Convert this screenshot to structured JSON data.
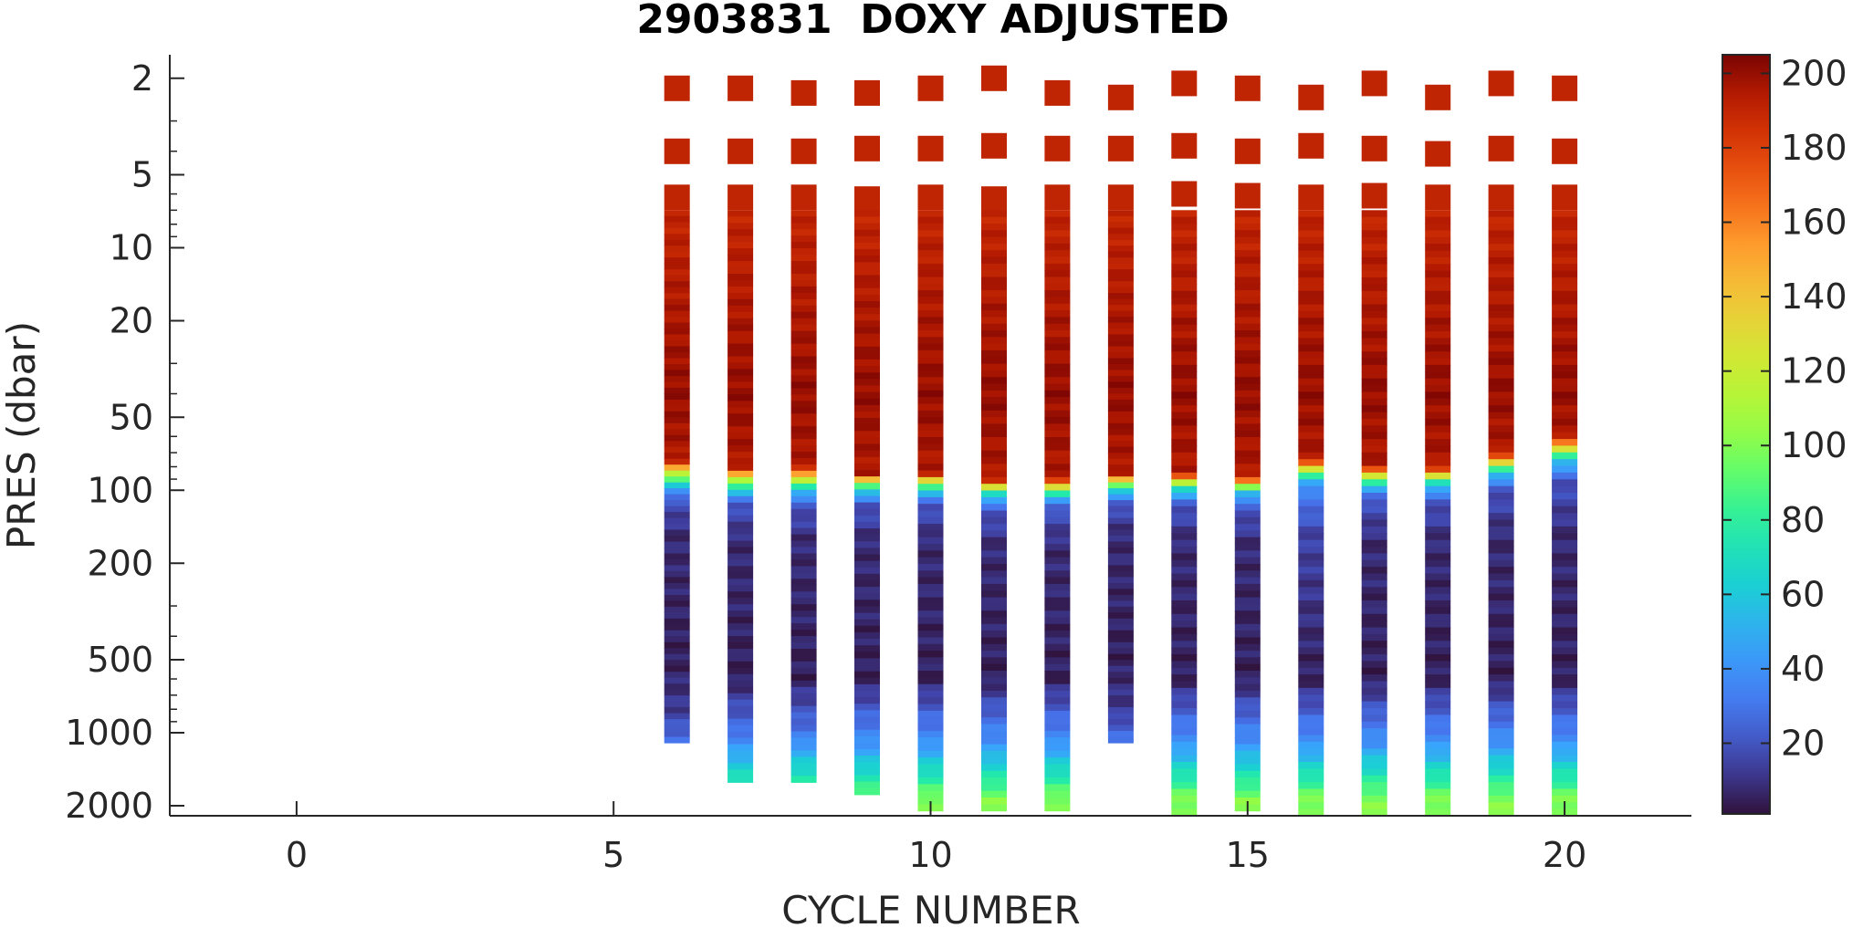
{
  "chart_data": {
    "type": "heatmap",
    "title": "2903831  DOXY ADJUSTED",
    "xlabel": "CYCLE NUMBER",
    "ylabel": "PRES (dbar)",
    "xlim": [
      -2,
      22
    ],
    "ylim": [
      2200,
      1.6
    ],
    "y_scale": "log",
    "y_reversed": true,
    "xticks": [
      0,
      5,
      10,
      15,
      20
    ],
    "xtick_labels": [
      "0",
      "5",
      "10",
      "15",
      "20"
    ],
    "yticks": [
      2,
      5,
      10,
      20,
      50,
      100,
      200,
      500,
      1000,
      2000
    ],
    "ytick_labels": [
      "2",
      "5",
      "10",
      "20",
      "50",
      "100",
      "200",
      "500",
      "1000",
      "2000"
    ],
    "colorbar": {
      "colormap": "turbo",
      "range": [
        1,
        205
      ],
      "ticks": [
        20,
        40,
        60,
        80,
        100,
        120,
        140,
        160,
        180,
        200
      ],
      "tick_labels": [
        "20",
        "40",
        "60",
        "80",
        "100",
        "120",
        "140",
        "160",
        "180",
        "200"
      ]
    },
    "grid": false,
    "profiles": [
      {
        "cycle": 6,
        "surface_pres": [
          2.2,
          4.0,
          6.2
        ],
        "surface_value": 190,
        "max_pres": 1100,
        "bottom_value": 30,
        "profile": [
          [
            7,
            190
          ],
          [
            40,
            200
          ],
          [
            75,
            195
          ],
          [
            85,
            120
          ],
          [
            95,
            60
          ],
          [
            110,
            20
          ],
          [
            150,
            8
          ],
          [
            500,
            5
          ],
          [
            800,
            12
          ],
          [
            1100,
            30
          ]
        ]
      },
      {
        "cycle": 7,
        "surface_pres": [
          2.2,
          4.0,
          6.2
        ],
        "surface_value": 190,
        "max_pres": 1600,
        "bottom_value": 75,
        "profile": [
          [
            7,
            190
          ],
          [
            40,
            200
          ],
          [
            80,
            195
          ],
          [
            90,
            120
          ],
          [
            100,
            60
          ],
          [
            115,
            20
          ],
          [
            160,
            8
          ],
          [
            600,
            5
          ],
          [
            1000,
            30
          ],
          [
            1600,
            75
          ]
        ]
      },
      {
        "cycle": 8,
        "surface_pres": [
          2.3,
          4.0,
          6.2
        ],
        "surface_value": 190,
        "max_pres": 1600,
        "bottom_value": 80,
        "profile": [
          [
            7,
            190
          ],
          [
            40,
            200
          ],
          [
            80,
            195
          ],
          [
            90,
            120
          ],
          [
            100,
            60
          ],
          [
            115,
            20
          ],
          [
            160,
            8
          ],
          [
            600,
            5
          ],
          [
            1000,
            30
          ],
          [
            1600,
            80
          ]
        ]
      },
      {
        "cycle": 9,
        "surface_pres": [
          2.3,
          3.9,
          6.3
        ],
        "surface_value": 190,
        "max_pres": 1800,
        "bottom_value": 90,
        "profile": [
          [
            7,
            190
          ],
          [
            40,
            200
          ],
          [
            85,
            195
          ],
          [
            93,
            120
          ],
          [
            100,
            60
          ],
          [
            115,
            20
          ],
          [
            160,
            8
          ],
          [
            600,
            5
          ],
          [
            1100,
            40
          ],
          [
            1800,
            90
          ]
        ]
      },
      {
        "cycle": 10,
        "surface_pres": [
          2.2,
          3.9,
          6.2
        ],
        "surface_value": 190,
        "max_pres": 2100,
        "bottom_value": 100,
        "profile": [
          [
            7,
            190
          ],
          [
            40,
            200
          ],
          [
            85,
            195
          ],
          [
            93,
            120
          ],
          [
            100,
            60
          ],
          [
            115,
            20
          ],
          [
            160,
            8
          ],
          [
            600,
            5
          ],
          [
            1100,
            40
          ],
          [
            1900,
            100
          ],
          [
            2100,
            100
          ]
        ]
      },
      {
        "cycle": 11,
        "surface_pres": [
          2.0,
          3.8,
          6.3
        ],
        "surface_value": 190,
        "max_pres": 2100,
        "bottom_value": 100,
        "profile": [
          [
            7,
            190
          ],
          [
            40,
            200
          ],
          [
            90,
            195
          ],
          [
            98,
            120
          ],
          [
            105,
            60
          ],
          [
            120,
            20
          ],
          [
            170,
            8
          ],
          [
            600,
            5
          ],
          [
            1100,
            40
          ],
          [
            1900,
            100
          ],
          [
            2100,
            100
          ]
        ]
      },
      {
        "cycle": 12,
        "surface_pres": [
          2.3,
          3.9,
          6.2
        ],
        "surface_value": 190,
        "max_pres": 2100,
        "bottom_value": 100,
        "profile": [
          [
            7,
            190
          ],
          [
            40,
            200
          ],
          [
            90,
            195
          ],
          [
            98,
            120
          ],
          [
            105,
            60
          ],
          [
            120,
            20
          ],
          [
            170,
            8
          ],
          [
            600,
            5
          ],
          [
            1100,
            40
          ],
          [
            1900,
            100
          ],
          [
            2100,
            100
          ]
        ]
      },
      {
        "cycle": 13,
        "surface_pres": [
          2.4,
          3.9,
          6.2
        ],
        "surface_value": 190,
        "max_pres": 1100,
        "bottom_value": 30,
        "profile": [
          [
            7,
            190
          ],
          [
            40,
            200
          ],
          [
            85,
            195
          ],
          [
            93,
            120
          ],
          [
            100,
            60
          ],
          [
            115,
            20
          ],
          [
            150,
            8
          ],
          [
            500,
            5
          ],
          [
            800,
            12
          ],
          [
            1100,
            30
          ]
        ]
      },
      {
        "cycle": 14,
        "surface_pres": [
          2.1,
          3.8,
          6.0
        ],
        "surface_value": 190,
        "max_pres": 2200,
        "bottom_value": 100,
        "profile": [
          [
            7,
            190
          ],
          [
            40,
            200
          ],
          [
            85,
            195
          ],
          [
            93,
            120
          ],
          [
            100,
            60
          ],
          [
            115,
            20
          ],
          [
            160,
            8
          ],
          [
            600,
            5
          ],
          [
            1100,
            40
          ],
          [
            1900,
            100
          ],
          [
            2200,
            100
          ]
        ]
      },
      {
        "cycle": 15,
        "surface_pres": [
          2.2,
          4.0,
          6.1
        ],
        "surface_value": 190,
        "max_pres": 2100,
        "bottom_value": 100,
        "profile": [
          [
            7,
            190
          ],
          [
            40,
            200
          ],
          [
            88,
            195
          ],
          [
            95,
            120
          ],
          [
            102,
            60
          ],
          [
            118,
            20
          ],
          [
            165,
            8
          ],
          [
            600,
            5
          ],
          [
            1100,
            40
          ],
          [
            1900,
            100
          ],
          [
            2100,
            100
          ]
        ]
      },
      {
        "cycle": 16,
        "surface_pres": [
          2.4,
          3.8,
          6.2
        ],
        "surface_value": 190,
        "max_pres": 2200,
        "bottom_value": 100,
        "profile": [
          [
            7,
            190
          ],
          [
            40,
            200
          ],
          [
            75,
            195
          ],
          [
            82,
            120
          ],
          [
            90,
            60
          ],
          [
            100,
            35
          ],
          [
            150,
            15
          ],
          [
            600,
            5
          ],
          [
            1100,
            40
          ],
          [
            1900,
            100
          ],
          [
            2200,
            100
          ]
        ]
      },
      {
        "cycle": 17,
        "surface_pres": [
          2.1,
          3.9,
          6.1
        ],
        "surface_value": 190,
        "max_pres": 2200,
        "bottom_value": 100,
        "profile": [
          [
            7,
            190
          ],
          [
            40,
            200
          ],
          [
            80,
            195
          ],
          [
            88,
            120
          ],
          [
            95,
            60
          ],
          [
            110,
            20
          ],
          [
            160,
            8
          ],
          [
            600,
            5
          ],
          [
            1100,
            40
          ],
          [
            1900,
            100
          ],
          [
            2200,
            100
          ]
        ]
      },
      {
        "cycle": 18,
        "surface_pres": [
          2.4,
          4.1,
          6.2
        ],
        "surface_value": 190,
        "max_pres": 2200,
        "bottom_value": 100,
        "profile": [
          [
            7,
            190
          ],
          [
            40,
            200
          ],
          [
            80,
            195
          ],
          [
            88,
            120
          ],
          [
            95,
            60
          ],
          [
            110,
            20
          ],
          [
            160,
            8
          ],
          [
            600,
            5
          ],
          [
            1100,
            40
          ],
          [
            1900,
            100
          ],
          [
            2200,
            100
          ]
        ]
      },
      {
        "cycle": 19,
        "surface_pres": [
          2.1,
          3.9,
          6.2
        ],
        "surface_value": 190,
        "max_pres": 2200,
        "bottom_value": 100,
        "profile": [
          [
            7,
            190
          ],
          [
            40,
            200
          ],
          [
            70,
            195
          ],
          [
            78,
            120
          ],
          [
            85,
            60
          ],
          [
            98,
            20
          ],
          [
            150,
            8
          ],
          [
            600,
            5
          ],
          [
            1100,
            40
          ],
          [
            1900,
            100
          ],
          [
            2200,
            100
          ]
        ]
      },
      {
        "cycle": 20,
        "surface_pres": [
          2.2,
          4.0,
          6.2
        ],
        "surface_value": 190,
        "max_pres": 2200,
        "bottom_value": 100,
        "profile": [
          [
            7,
            190
          ],
          [
            40,
            200
          ],
          [
            60,
            195
          ],
          [
            68,
            120
          ],
          [
            75,
            60
          ],
          [
            90,
            20
          ],
          [
            150,
            8
          ],
          [
            600,
            5
          ],
          [
            1100,
            40
          ],
          [
            1900,
            100
          ],
          [
            2200,
            100
          ]
        ]
      }
    ]
  }
}
